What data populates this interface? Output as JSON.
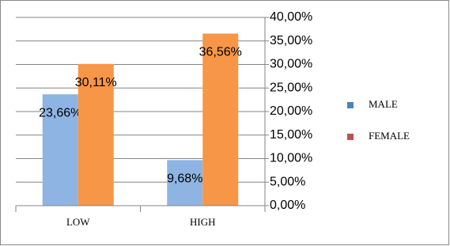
{
  "chart_data": {
    "type": "bar",
    "categories": [
      "LOW",
      "HIGH"
    ],
    "series": [
      {
        "name": "MALE",
        "color": "#8eb4e3",
        "legend_color": "#4f81bd",
        "values": [
          23.66,
          9.68
        ],
        "value_labels": [
          "23,66%",
          "9,68%"
        ]
      },
      {
        "name": "FEMALE",
        "color": "#f79646",
        "legend_color": "#c0504d",
        "values": [
          30.11,
          36.56
        ],
        "value_labels": [
          "30,11%",
          "36,56%"
        ]
      }
    ],
    "ylim": [
      0,
      40
    ],
    "yticks": [
      {
        "value": 0,
        "label": "0,00%"
      },
      {
        "value": 5,
        "label": "5,00%"
      },
      {
        "value": 10,
        "label": "10,00%"
      },
      {
        "value": 15,
        "label": "15,00%"
      },
      {
        "value": 20,
        "label": "20,00%"
      },
      {
        "value": 25,
        "label": "25,00%"
      },
      {
        "value": 30,
        "label": "30,00%"
      },
      {
        "value": 35,
        "label": "35,00%"
      },
      {
        "value": 40,
        "label": "40,00%"
      }
    ],
    "y_axis_side": "right",
    "grid": true,
    "legend": "right"
  }
}
